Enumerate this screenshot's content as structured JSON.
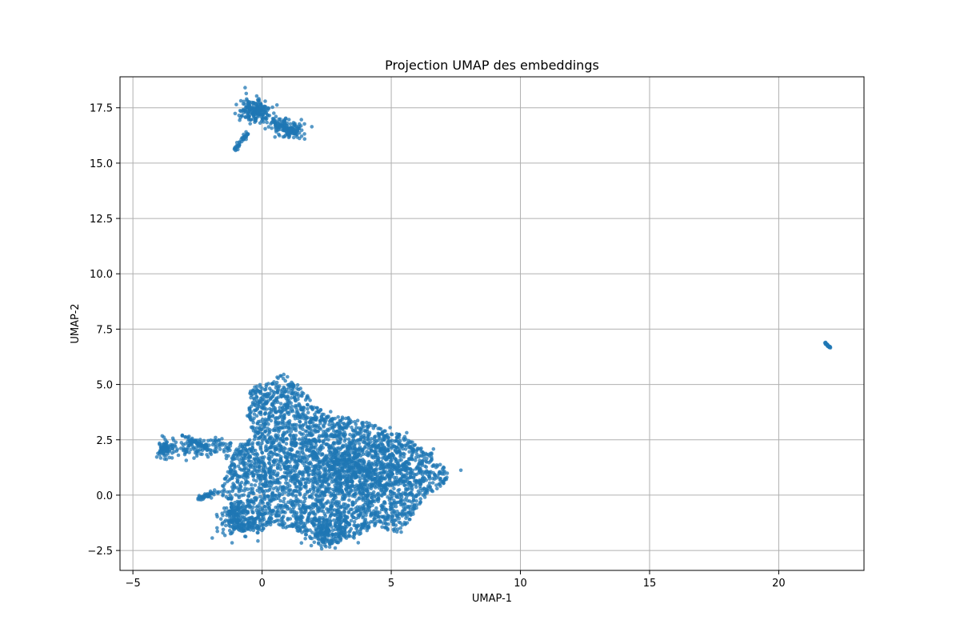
{
  "chart_data": {
    "type": "scatter",
    "title": "Projection UMAP des embeddings",
    "xlabel": "UMAP-1",
    "ylabel": "UMAP-2",
    "xlim": [
      -5.5,
      23.3
    ],
    "ylim": [
      -3.4,
      18.9
    ],
    "xticks": [
      -5,
      0,
      5,
      10,
      15,
      20
    ],
    "xtick_labels": [
      "−5",
      "0",
      "5",
      "10",
      "15",
      "20"
    ],
    "yticks": [
      -2.5,
      0.0,
      2.5,
      5.0,
      7.5,
      10.0,
      12.5,
      15.0,
      17.5
    ],
    "ytick_labels": [
      "−2.5",
      "0.0",
      "2.5",
      "5.0",
      "7.5",
      "10.0",
      "12.5",
      "15.0",
      "17.5"
    ],
    "grid": true,
    "marker_color": "#1f77b4",
    "marker_alpha": 0.75,
    "clusters": [
      {
        "name": "main-cluster",
        "description": "large dense cloud",
        "x_range": [
          -4.0,
          7.4
        ],
        "y_range": [
          -2.4,
          5.5
        ],
        "approx_points": 4500,
        "landmarks": [
          {
            "x": -3.8,
            "y": 2.0
          },
          {
            "x": -2.8,
            "y": 2.6
          },
          {
            "x": -2.4,
            "y": -0.2
          },
          {
            "x": -1.0,
            "y": -1.5
          },
          {
            "x": 0.0,
            "y": 4.5
          },
          {
            "x": 0.8,
            "y": 5.5
          },
          {
            "x": 2.3,
            "y": -2.4
          },
          {
            "x": 4.5,
            "y": 3.0
          },
          {
            "x": 5.5,
            "y": -1.8
          },
          {
            "x": 7.3,
            "y": 0.7
          }
        ]
      },
      {
        "name": "top-cluster",
        "description": "upper-left cluster",
        "x_range": [
          -1.2,
          1.5
        ],
        "y_range": [
          15.5,
          17.9
        ],
        "approx_points": 450,
        "landmarks": [
          {
            "x": -1.1,
            "y": 15.5
          },
          {
            "x": -0.8,
            "y": 17.8
          },
          {
            "x": 0.0,
            "y": 17.8
          },
          {
            "x": 1.4,
            "y": 16.8
          },
          {
            "x": 0.8,
            "y": 16.0
          }
        ]
      },
      {
        "name": "outlier-cluster",
        "description": "small isolated group",
        "x_range": [
          21.8,
          22.0
        ],
        "y_range": [
          6.7,
          6.9
        ],
        "approx_points": 30,
        "landmarks": [
          {
            "x": 21.8,
            "y": 6.85
          },
          {
            "x": 22.0,
            "y": 6.7
          }
        ]
      }
    ]
  }
}
